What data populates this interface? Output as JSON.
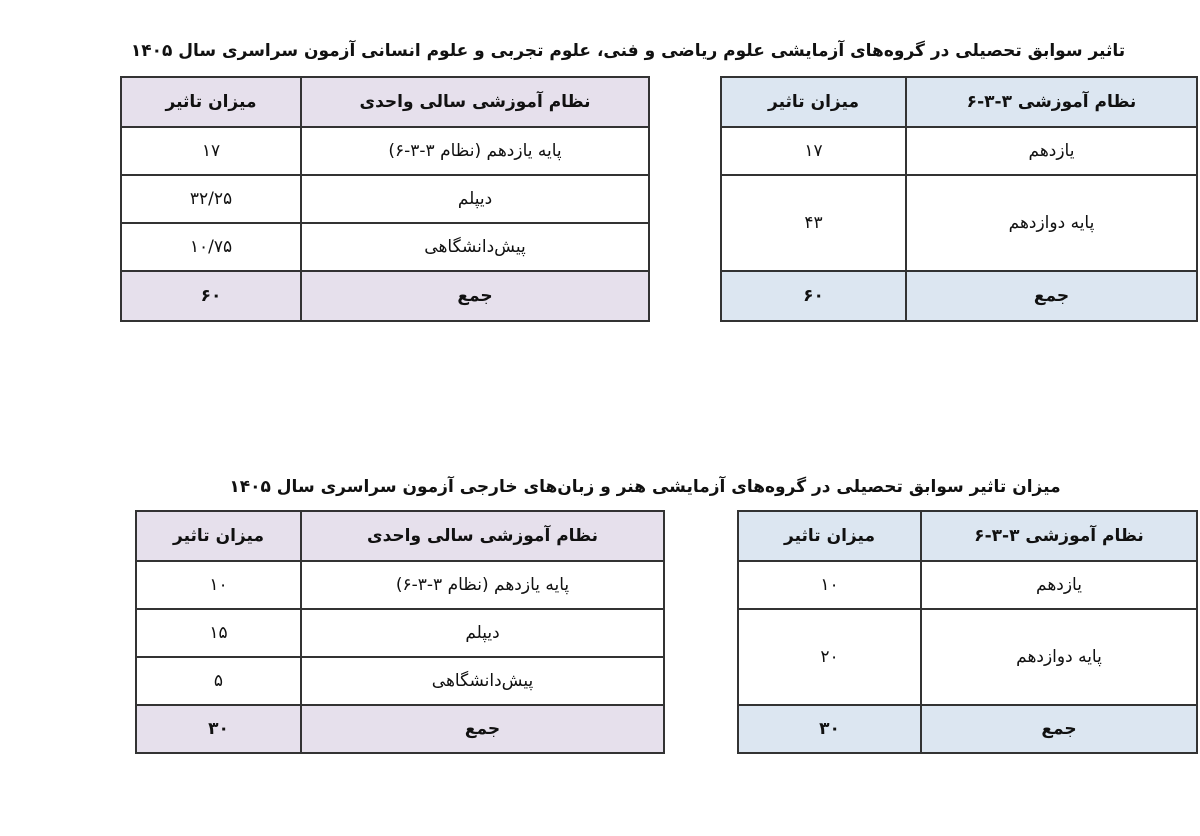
{
  "top": {
    "title": "تاثیر سوابق تحصیلی در گروه‌های آزمایشی علوم ریاضی و فنی، علوم تجربی و علوم انسانی آزمون سراسری سال ۱۴۰۵",
    "annual_table": {
      "headers": [
        "نظام آموزشی سالی واحدی",
        "میزان تاثیر"
      ],
      "rows": [
        [
          "پایه یازدهم (نظام ۳-۳-۶)",
          "۱۷"
        ],
        [
          "دیپلم",
          "۳۲/۲۵"
        ],
        [
          "پیش‌دانشگاهی",
          "۱۰/۷۵"
        ]
      ],
      "total": [
        "جمع",
        "۶۰"
      ]
    },
    "new_table": {
      "headers": [
        "نظام آموزشی ۳-۳-۶",
        "میزان تاثیر"
      ],
      "rows": [
        [
          "یازدهم",
          "۱۷"
        ],
        [
          "پایه دوازدهم",
          "۴۳"
        ]
      ],
      "total": [
        "جمع",
        "۶۰"
      ]
    }
  },
  "bottom": {
    "title": "میزان تاثیر سوابق تحصیلی در گروه‌های آزمایشی هنر و زبان‌های خارجی آزمون سراسری سال ۱۴۰۵",
    "annual_table": {
      "headers": [
        "نظام آموزشی سالی واحدی",
        "میزان تاثیر"
      ],
      "rows": [
        [
          "پایه یازدهم (نظام ۳-۳-۶)",
          "۱۰"
        ],
        [
          "دیپلم",
          "۱۵"
        ],
        [
          "پیش‌دانشگاهی",
          "۵"
        ]
      ],
      "total": [
        "جمع",
        "۳۰"
      ]
    },
    "new_table": {
      "headers": [
        "نظام آموزشی ۳-۳-۶",
        "میزان تاثیر"
      ],
      "rows": [
        [
          "یازدهم",
          "۱۰"
        ],
        [
          "پایه دوازدهم",
          "۲۰"
        ]
      ],
      "total": [
        "جمع",
        "۳۰"
      ]
    }
  },
  "colors": {
    "annual_header": "#e6e0ec",
    "new_header": "#dce6f1"
  }
}
